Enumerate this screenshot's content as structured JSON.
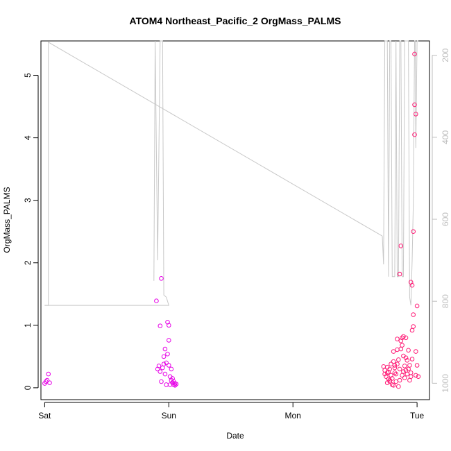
{
  "chart_data": {
    "type": "scatter",
    "title": "ATOM4 Northeast_Pacific_2 OrgMass_PALMS",
    "xlabel": "Date",
    "ylabel": "OrgMass_PALMS",
    "x_tick_labels": [
      "Sat",
      "Sun",
      "Mon",
      "Tue"
    ],
    "x_tick_values": [
      0,
      1,
      2,
      3
    ],
    "xlim": [
      -0.03,
      3.1
    ],
    "ylim": [
      -0.19,
      5.55
    ],
    "y_ticks": [
      0,
      1,
      2,
      3,
      4,
      5
    ],
    "right_axis": {
      "ticks": [
        200,
        400,
        600,
        800,
        1000
      ],
      "ylim": [
        1040,
        165
      ],
      "color": "#bdbdbd"
    },
    "grid": false,
    "colors": {
      "points_magenta": "#e600e6",
      "points_pink": "#ff1a75",
      "line": "#c8c8c8"
    },
    "series": [
      {
        "color": "#e600e6",
        "points": [
          [
            0.0,
            0.07
          ],
          [
            0.01,
            0.1
          ],
          [
            0.02,
            0.12
          ],
          [
            0.03,
            0.22
          ],
          [
            0.04,
            0.08
          ],
          [
            0.9,
            1.39
          ],
          [
            0.91,
            0.3
          ],
          [
            0.92,
            0.35
          ],
          [
            0.93,
            0.99
          ],
          [
            0.93,
            0.26
          ],
          [
            0.94,
            1.75
          ],
          [
            0.94,
            0.1
          ],
          [
            0.95,
            0.32
          ],
          [
            0.96,
            0.38
          ],
          [
            0.96,
            0.5
          ],
          [
            0.97,
            0.62
          ],
          [
            0.97,
            0.22
          ],
          [
            0.98,
            0.05
          ],
          [
            0.98,
            0.4
          ],
          [
            0.99,
            1.05
          ],
          [
            0.99,
            0.54
          ],
          [
            1.0,
            1.0
          ],
          [
            1.0,
            0.76
          ],
          [
            1.0,
            0.36
          ],
          [
            1.01,
            0.18
          ],
          [
            1.01,
            0.05
          ],
          [
            1.02,
            0.12
          ],
          [
            1.02,
            0.3
          ],
          [
            1.03,
            0.08
          ],
          [
            1.03,
            0.15
          ],
          [
            1.04,
            0.05
          ],
          [
            1.04,
            0.1
          ],
          [
            1.05,
            0.07
          ],
          [
            1.05,
            0.04
          ],
          [
            1.06,
            0.06
          ]
        ]
      },
      {
        "color": "#ff1a75",
        "points": [
          [
            2.73,
            0.34
          ],
          [
            2.74,
            0.22
          ],
          [
            2.74,
            0.28
          ],
          [
            2.75,
            0.18
          ],
          [
            2.76,
            0.33
          ],
          [
            2.76,
            0.08
          ],
          [
            2.77,
            0.25
          ],
          [
            2.77,
            0.14
          ],
          [
            2.78,
            0.3
          ],
          [
            2.78,
            0.12
          ],
          [
            2.79,
            0.2
          ],
          [
            2.79,
            0.38
          ],
          [
            2.8,
            0.15
          ],
          [
            2.8,
            0.05
          ],
          [
            2.81,
            0.58
          ],
          [
            2.81,
            0.42
          ],
          [
            2.81,
            0.04
          ],
          [
            2.82,
            0.24
          ],
          [
            2.82,
            0.36
          ],
          [
            2.83,
            0.1
          ],
          [
            2.83,
            0.22
          ],
          [
            2.84,
            0.78
          ],
          [
            2.84,
            0.61
          ],
          [
            2.85,
            0.45
          ],
          [
            2.85,
            0.02
          ],
          [
            2.86,
            1.82
          ],
          [
            2.86,
            0.3
          ],
          [
            2.86,
            0.12
          ],
          [
            2.87,
            0.75
          ],
          [
            2.87,
            2.27
          ],
          [
            2.87,
            0.62
          ],
          [
            2.88,
            0.8
          ],
          [
            2.88,
            0.2
          ],
          [
            2.89,
            0.51
          ],
          [
            2.89,
            0.26
          ],
          [
            2.89,
            0.82
          ],
          [
            2.9,
            0.35
          ],
          [
            2.9,
            0.16
          ],
          [
            2.91,
            0.48
          ],
          [
            2.91,
            0.28
          ],
          [
            2.91,
            0.8
          ],
          [
            2.92,
            0.44
          ],
          [
            2.92,
            0.22
          ],
          [
            2.93,
            0.3
          ],
          [
            2.93,
            0.6
          ],
          [
            2.94,
            0.12
          ],
          [
            2.94,
            0.36
          ],
          [
            2.95,
            0.18
          ],
          [
            2.95,
            0.24
          ],
          [
            2.95,
            1.69
          ],
          [
            2.96,
            1.64
          ],
          [
            2.96,
            0.92
          ],
          [
            2.96,
            0.46
          ],
          [
            2.97,
            1.17
          ],
          [
            2.97,
            0.98
          ],
          [
            2.97,
            2.5
          ],
          [
            2.98,
            5.34
          ],
          [
            2.98,
            4.53
          ],
          [
            2.98,
            4.05
          ],
          [
            2.99,
            4.38
          ],
          [
            2.99,
            0.58
          ],
          [
            2.99,
            0.2
          ],
          [
            3.0,
            0.36
          ],
          [
            3.0,
            1.31
          ],
          [
            3.01,
            0.18
          ],
          [
            2.88,
            0.68
          ],
          [
            2.84,
            0.38
          ],
          [
            2.82,
            0.32
          ],
          [
            2.78,
            0.1
          ],
          [
            2.76,
            0.24
          ]
        ]
      }
    ],
    "line_series": {
      "color": "#c8c8c8",
      "axis": "right",
      "points": [
        [
          0.0,
          810
        ],
        [
          0.02,
          810
        ],
        [
          0.03,
          168
        ],
        [
          0.87,
          300
        ],
        [
          0.88,
          300
        ],
        [
          0.89,
          745
        ],
        [
          0.9,
          660
        ],
        [
          0.91,
          60
        ],
        [
          0.92,
          60
        ],
        [
          0.93,
          700
        ],
        [
          0.935,
          740
        ],
        [
          0.94,
          60
        ],
        [
          0.96,
          60
        ],
        [
          0.97,
          745
        ],
        [
          0.98,
          760
        ],
        [
          0.99,
          800
        ],
        [
          1.0,
          810
        ],
        [
          0.0,
          810
        ],
        [
          0.02,
          810
        ],
        [
          1.0,
          810
        ],
        [
          1.0,
          810
        ]
      ],
      "segments": [
        [
          [
            0.0,
            810
          ],
          [
            0.03,
            810
          ],
          [
            0.03,
            168
          ],
          [
            2.72,
            641
          ]
        ],
        [
          [
            0.88,
            750
          ],
          [
            0.89,
            60
          ],
          [
            0.91,
            700
          ],
          [
            0.93,
            60
          ],
          [
            0.95,
            60
          ],
          [
            0.96,
            785
          ],
          [
            0.98,
            790
          ],
          [
            1.0,
            810
          ],
          [
            0.0,
            810
          ]
        ],
        [
          [
            2.72,
            641
          ],
          [
            2.73,
            710
          ],
          [
            2.74,
            60
          ],
          [
            2.76,
            60
          ],
          [
            2.77,
            740
          ],
          [
            2.78,
            60
          ],
          [
            2.79,
            60
          ],
          [
            2.8,
            740
          ],
          [
            2.82,
            740
          ],
          [
            2.83,
            60
          ],
          [
            2.84,
            740
          ],
          [
            2.85,
            740
          ],
          [
            2.86,
            60
          ],
          [
            2.87,
            60
          ],
          [
            2.88,
            740
          ],
          [
            2.89,
            740
          ],
          [
            2.9,
            60
          ],
          [
            2.93,
            60
          ],
          [
            2.94,
            790
          ],
          [
            2.95,
            810
          ],
          [
            2.96,
            700
          ],
          [
            2.97,
            560
          ],
          [
            2.98,
            60
          ],
          [
            2.985,
            60
          ],
          [
            2.99,
            426
          ],
          [
            3.0,
            60
          ],
          [
            3.01,
            60
          ]
        ]
      ]
    }
  }
}
